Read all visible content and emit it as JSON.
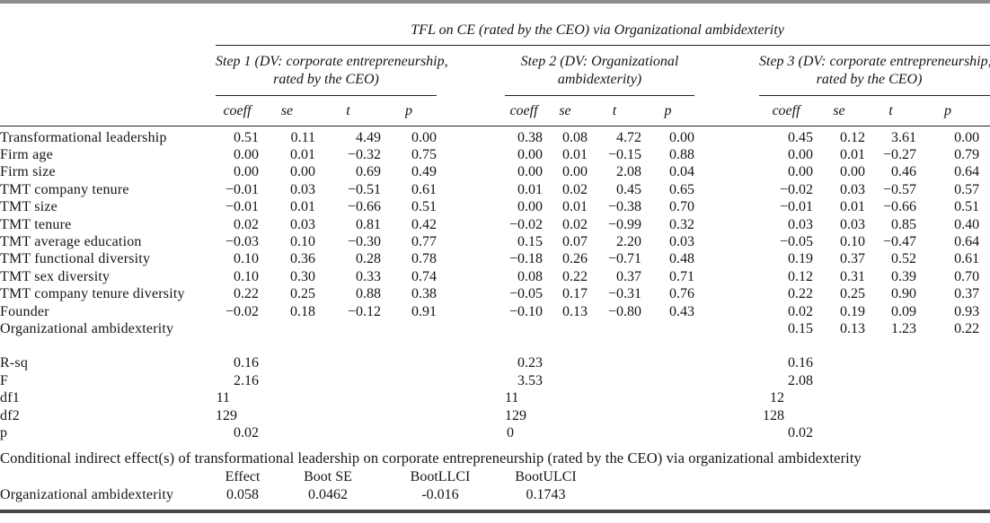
{
  "colors": {
    "text": "#151515",
    "top_rule_gray": "#8d8d8d",
    "bottom_rule_gray": "#474747",
    "inner_rule": "#222222"
  },
  "table": {
    "title": "TFL on CE (rated by the CEO) via Organizational ambidexterity",
    "steps": [
      {
        "label": "Step 1 (DV: corporate entrepreneurship, rated by the CEO)",
        "line1": "Step 1 (DV: corporate entrepreneurship,",
        "line2": "rated by the CEO)"
      },
      {
        "label": "Step 2 (DV: Organizational ambidexterity)",
        "line1": "Step 2 (DV: Organizational",
        "line2": "ambidexterity)"
      },
      {
        "label": "Step 3 (DV: corporate entrepreneurship, rated by the CEO)",
        "line1": "Step 3 (DV: corporate entrepreneurship,",
        "line2": "rated by the CEO)"
      }
    ],
    "col_headers": [
      "coeff",
      "se",
      "t",
      "p"
    ],
    "rows": [
      {
        "label": "Transformational leadership",
        "step1": [
          "0.51",
          "0.11",
          "4.49",
          "0.00"
        ],
        "step1_bold": true,
        "step2": [
          "0.38",
          "0.08",
          "4.72",
          "0.00"
        ],
        "step3": [
          "0.45",
          "0.12",
          "3.61",
          "0.00"
        ],
        "step3_bold": true
      },
      {
        "label": "Firm age",
        "step1": [
          "0.00",
          "0.01",
          "−0.32",
          "0.75"
        ],
        "step2": [
          "0.00",
          "0.01",
          "−0.15",
          "0.88"
        ],
        "step3": [
          "0.00",
          "0.01",
          "−0.27",
          "0.79"
        ]
      },
      {
        "label": "Firm size",
        "step1": [
          "0.00",
          "0.00",
          "0.69",
          "0.49"
        ],
        "step2": [
          "0.00",
          "0.00",
          "2.08",
          "0.04"
        ],
        "step3": [
          "0.00",
          "0.00",
          "0.46",
          "0.64"
        ]
      },
      {
        "label": "TMT company tenure",
        "step1": [
          "−0.01",
          "0.03",
          "−0.51",
          "0.61"
        ],
        "step2": [
          "0.01",
          "0.02",
          "0.45",
          "0.65"
        ],
        "step3": [
          "−0.02",
          "0.03",
          "−0.57",
          "0.57"
        ]
      },
      {
        "label": "TMT size",
        "step1": [
          "−0.01",
          "0.01",
          "−0.66",
          "0.51"
        ],
        "step2": [
          "0.00",
          "0.01",
          "−0.38",
          "0.70"
        ],
        "step3": [
          "−0.01",
          "0.01",
          "−0.66",
          "0.51"
        ]
      },
      {
        "label": "TMT tenure",
        "step1": [
          "0.02",
          "0.03",
          "0.81",
          "0.42"
        ],
        "step2": [
          "−0.02",
          "0.02",
          "−0.99",
          "0.32"
        ],
        "step3": [
          "0.03",
          "0.03",
          "0.85",
          "0.40"
        ]
      },
      {
        "label": "TMT average education",
        "step1": [
          "−0.03",
          "0.10",
          "−0.30",
          "0.77"
        ],
        "step2": [
          "0.15",
          "0.07",
          "2.20",
          "0.03"
        ],
        "step3": [
          "−0.05",
          "0.10",
          "−0.47",
          "0.64"
        ]
      },
      {
        "label": "TMT functional diversity",
        "step1": [
          "0.10",
          "0.36",
          "0.28",
          "0.78"
        ],
        "step2": [
          "−0.18",
          "0.26",
          "−0.71",
          "0.48"
        ],
        "step3": [
          "0.19",
          "0.37",
          "0.52",
          "0.61"
        ]
      },
      {
        "label": "TMT sex diversity",
        "step1": [
          "0.10",
          "0.30",
          "0.33",
          "0.74"
        ],
        "step2": [
          "0.08",
          "0.22",
          "0.37",
          "0.71"
        ],
        "step3": [
          "0.12",
          "0.31",
          "0.39",
          "0.70"
        ]
      },
      {
        "label": "TMT company tenure diversity",
        "step1": [
          "0.22",
          "0.25",
          "0.88",
          "0.38"
        ],
        "step2": [
          "−0.05",
          "0.17",
          "−0.31",
          "0.76"
        ],
        "step3": [
          "0.22",
          "0.25",
          "0.90",
          "0.37"
        ]
      },
      {
        "label": "Founder",
        "step1": [
          "−0.02",
          "0.18",
          "−0.12",
          "0.91"
        ],
        "step2": [
          "−0.10",
          "0.13",
          "−0.80",
          "0.43"
        ],
        "step3": [
          "0.02",
          "0.19",
          "0.09",
          "0.93"
        ]
      },
      {
        "label": "Organizational ambidexterity",
        "step1": [
          "",
          "",
          "",
          ""
        ],
        "step2": [
          "",
          "",
          "",
          ""
        ],
        "step3": [
          "0.15",
          "0.13",
          "1.23",
          "0.22"
        ],
        "step3_bold": true
      }
    ],
    "stats": [
      {
        "label": "R-sq",
        "step1": "0.16",
        "step2": "0.23",
        "step3": "0.16"
      },
      {
        "label": "F",
        "step1": "2.16",
        "step2": "3.53",
        "step3": "2.08"
      },
      {
        "label": "df1",
        "step1": "11",
        "step2": "11",
        "step3": "12"
      },
      {
        "label": "df2",
        "step1": "129",
        "step2": "129",
        "step3": "128"
      },
      {
        "label": "p",
        "step1": "0.02",
        "step2": "0",
        "step3": "0.02"
      }
    ],
    "conditional": {
      "caption": "Conditional indirect effect(s) of transformational leadership on corporate entrepreneurship (rated by the CEO) via organizational ambidexterity",
      "headers": [
        "Effect",
        "Boot SE",
        "BootLLCI",
        "BootULCI"
      ],
      "row": {
        "label": "Organizational ambidexterity",
        "values": [
          "0.058",
          "0.0462",
          "-0.016",
          "0.1743"
        ]
      }
    }
  }
}
